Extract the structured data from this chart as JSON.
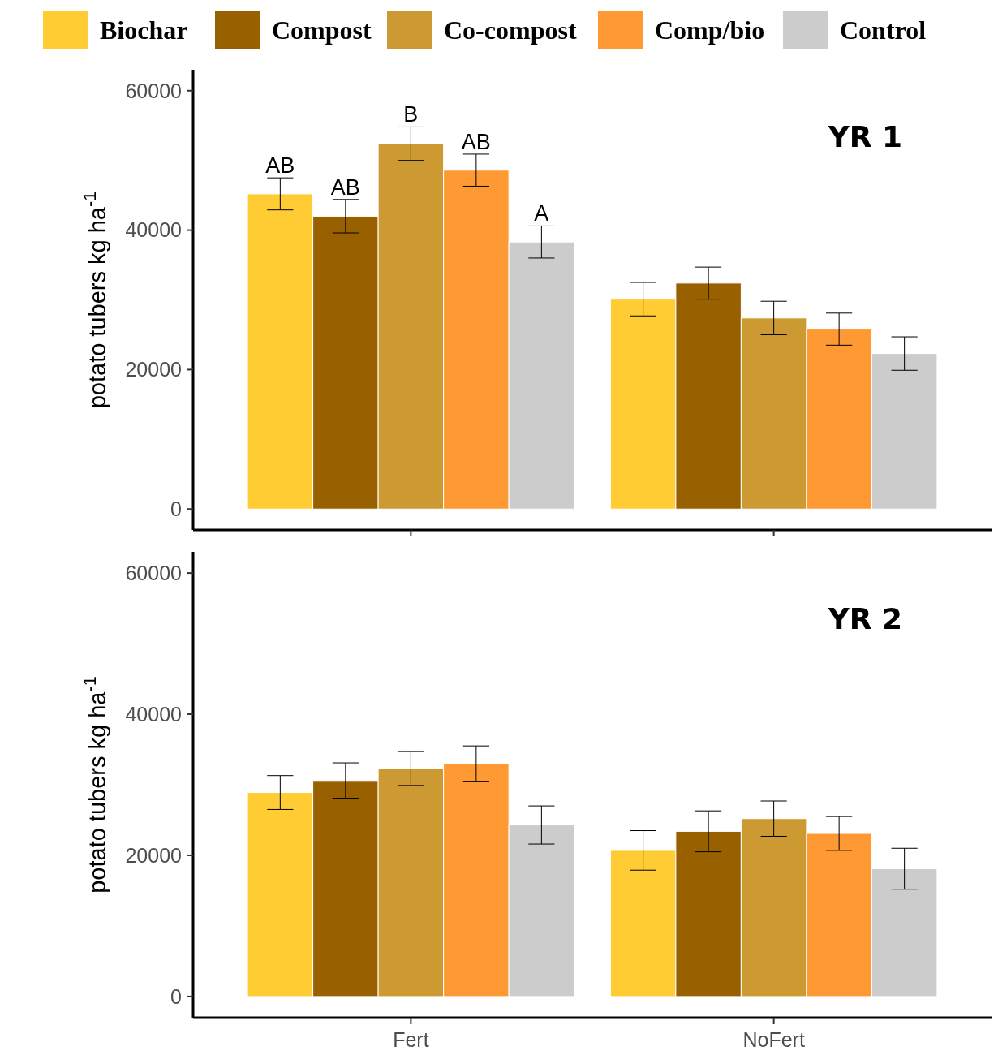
{
  "chart_data": [
    {
      "type": "bar",
      "title": "YR 1",
      "ylabel": "potato tubers kg ha$^{-1}$",
      "categories": [
        null,
        null
      ],
      "ylim": [
        -3000,
        63000
      ],
      "yticks": [
        0,
        20000,
        40000,
        60000
      ],
      "legend": "top",
      "tick_labels": "y",
      "grid": false,
      "series": [
        {
          "name": "Biochar",
          "color": "#ffcc33",
          "values": [
            45200,
            30100
          ],
          "errors": [
            2300,
            2400
          ],
          "value_labels": [
            "AB",
            null
          ]
        },
        {
          "name": "Compost",
          "color": "#996000",
          "values": [
            42000,
            32400
          ],
          "errors": [
            2400,
            2300
          ],
          "value_labels": [
            "AB",
            null
          ]
        },
        {
          "name": "Co-compost",
          "color": "#cc9933",
          "values": [
            52400,
            27400
          ],
          "errors": [
            2400,
            2400
          ],
          "value_labels": [
            "B",
            null
          ]
        },
        {
          "name": "Comp/bio",
          "color": "#ff9933",
          "values": [
            48600,
            25800
          ],
          "errors": [
            2300,
            2300
          ],
          "value_labels": [
            "AB",
            null
          ]
        },
        {
          "name": "Control",
          "color": "#cccccc",
          "values": [
            38300,
            22300
          ],
          "errors": [
            2300,
            2400
          ],
          "value_labels": [
            "A",
            null
          ]
        }
      ]
    },
    {
      "type": "bar",
      "title": "YR 2",
      "ylabel": "potato tubers kg ha$^{-1}$",
      "categories": [
        "Fert",
        "NoFert"
      ],
      "ylim": [
        -3000,
        63000
      ],
      "yticks": [
        0,
        20000,
        40000,
        60000
      ],
      "grid": false,
      "series": [
        {
          "color": "#ffcc33",
          "values": [
            28900,
            20700
          ],
          "errors": [
            2400,
            2800
          ]
        },
        {
          "color": "#996000",
          "values": [
            30600,
            23400
          ],
          "errors": [
            2500,
            2900
          ]
        },
        {
          "color": "#cc9933",
          "values": [
            32300,
            25200
          ],
          "errors": [
            2400,
            2500
          ]
        },
        {
          "color": "#ff9933",
          "values": [
            33000,
            23100
          ],
          "errors": [
            2500,
            2400
          ]
        },
        {
          "color": "#cccccc",
          "values": [
            24300,
            18100
          ],
          "errors": [
            2700,
            2900
          ]
        }
      ]
    }
  ]
}
